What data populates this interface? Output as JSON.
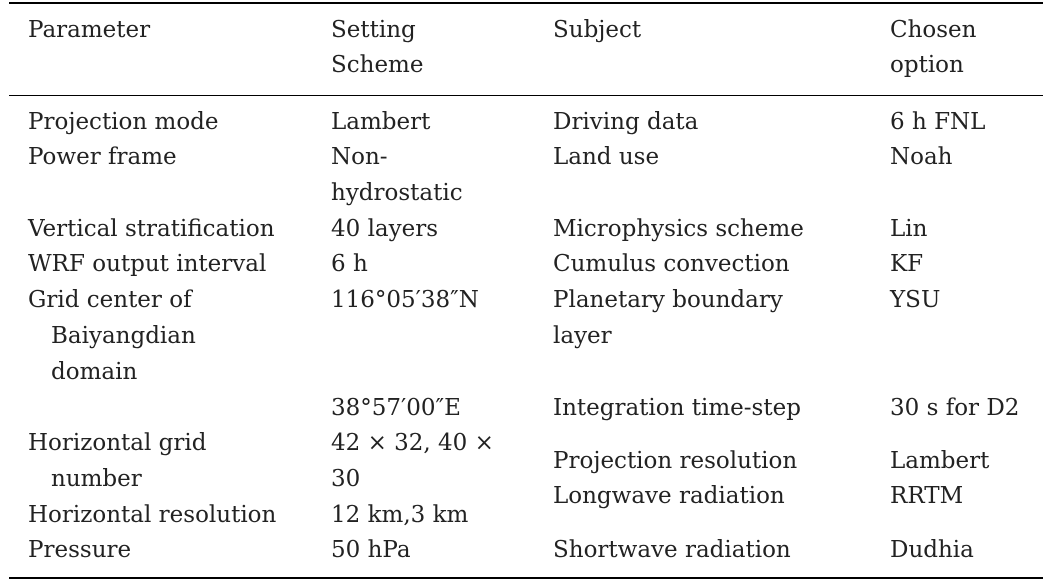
{
  "table": {
    "headers": {
      "parameter": "Parameter",
      "setting_1": "Setting",
      "setting_2": "Scheme",
      "subject": "Subject",
      "chosen_1": "Chosen",
      "chosen_2": "option"
    },
    "rows": {
      "projection_mode": {
        "parameter": "Projection mode",
        "setting": "Lambert",
        "subject": "Driving data",
        "option": "6 h FNL"
      },
      "power_frame": {
        "parameter": "Power frame",
        "setting_1": "Non-",
        "setting_2": "hydrostatic",
        "subject": "Land use",
        "option": "Noah"
      },
      "vertical_stratification": {
        "parameter": "Vertical stratification",
        "setting": "40 layers",
        "subject": "Microphysics scheme",
        "option": "Lin"
      },
      "wrf_output": {
        "parameter": "WRF output interval",
        "setting": "6 h",
        "subject": "Cumulus convection",
        "option": "KF"
      },
      "grid_center": {
        "parameter_1": "Grid center of",
        "parameter_2": "Baiyangdian",
        "parameter_3": "domain",
        "setting": "116°05′38″N",
        "subject_1": "Planetary boundary",
        "subject_2": "layer",
        "option": "YSU"
      },
      "grid_center_lat": {
        "setting": "38°57′00″E",
        "subject": "Integration time-step",
        "option": "30 s for D2"
      },
      "horizontal_grid": {
        "parameter_1": "Horizontal grid",
        "parameter_2": "number",
        "setting_1": "42 × 32, 40 ×",
        "setting_2": "30",
        "subject_1": "Projection resolution",
        "subject_2": "Longwave radiation",
        "option_1": "Lambert",
        "option_2": "RRTM"
      },
      "horizontal_resolution": {
        "parameter": "Horizontal resolution",
        "setting": "12 km,3 km"
      },
      "pressure": {
        "parameter": "Pressure",
        "setting": "50 hPa",
        "subject": "Shortwave radiation",
        "option": "Dudhia"
      }
    }
  }
}
